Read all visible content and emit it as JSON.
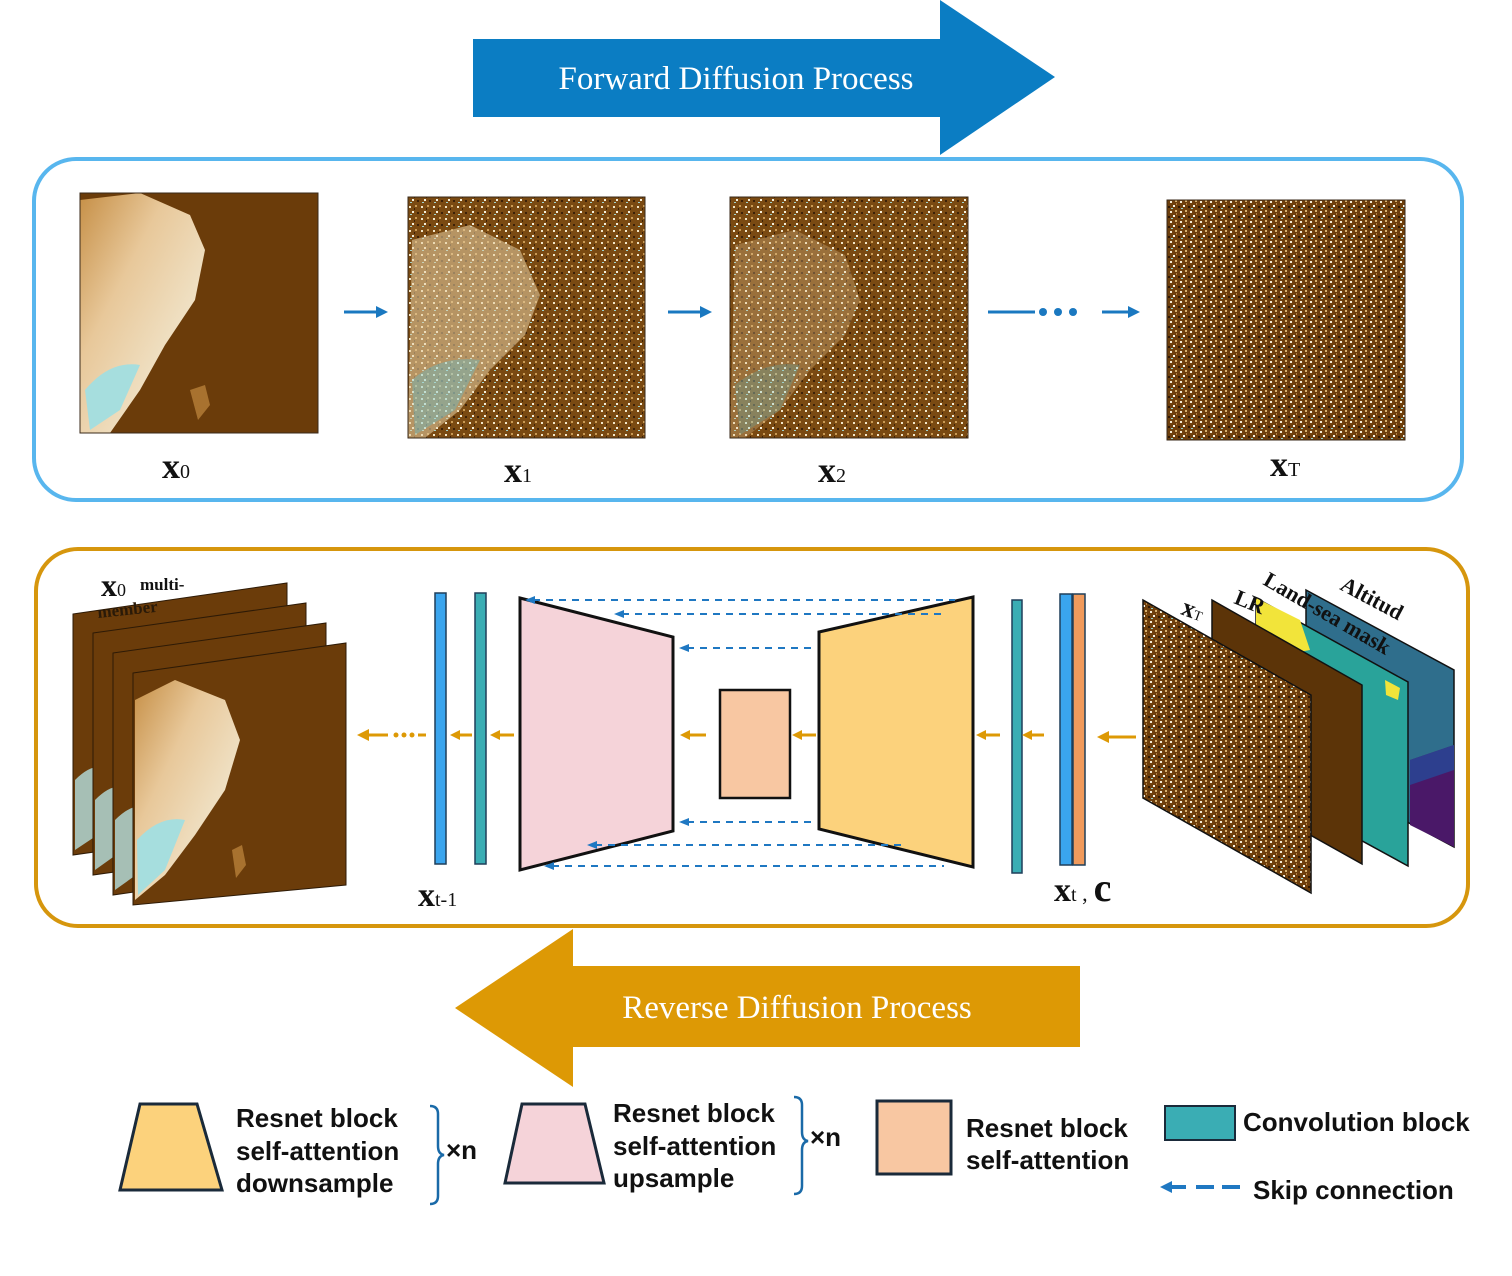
{
  "forward": {
    "title": "Forward Diffusion Process",
    "color": "#0b7dc3"
  },
  "reverse": {
    "title": "Reverse Diffusion Process",
    "color": "#dd9905"
  },
  "forward_panel": {
    "border_color": "#58b6ee",
    "labels": {
      "x0": "x",
      "x0_sub": "0",
      "x1": "x",
      "x1_sub": "1",
      "x2": "x",
      "x2_sub": "2",
      "xT": "x",
      "xT_sub": "T"
    }
  },
  "reverse_panel": {
    "border_color": "#d6960d",
    "stack_label": "x",
    "stack_label_sub": "0",
    "stack_caption_1": "multi-",
    "stack_caption_2": "member",
    "out_label": "x",
    "out_label_sub": "t-1",
    "in_label": "x",
    "in_label_sub": "t",
    "in_label_sep": " ,",
    "cond_label": "c",
    "cond_layers": {
      "xT": "x",
      "xT_sub": "T",
      "lr": "LR",
      "mask": "Land-sea mask",
      "alt": "Altitud"
    }
  },
  "legend": {
    "down_line1": "Resnet block",
    "down_line2": "self-attention",
    "down_line3": "downsample",
    "up_line1": "Resnet block",
    "up_line2": "self-attention",
    "up_line3": "upsample",
    "times_n": "×n",
    "mid_line1": "Resnet block",
    "mid_line2": "self-attention",
    "conv": "Convolution block",
    "skip": "Skip connection"
  },
  "colors": {
    "encoder": "#fcd27c",
    "decoder": "#f5d3d9",
    "bottleneck": "#f8c7a2",
    "conv": "#3aadb4",
    "blue_bar": "#3aa5ee",
    "orange_bar": "#f09a5c",
    "skip": "#1f78c2",
    "arrow_orange": "#dd9905",
    "brown": "#6b3c0a"
  }
}
